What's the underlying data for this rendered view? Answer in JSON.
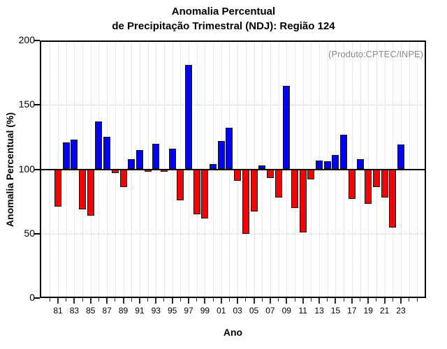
{
  "title": {
    "line1": "Anomalia Percentual",
    "line2": "de Precipitação Trimestral (NDJ): Região 124"
  },
  "annotation": "(Produto:CPTEC/INPE)",
  "chart_data": {
    "type": "bar",
    "title": "Anomalia Percentual de Precipitação Trimestral (NDJ): Região 124",
    "xlabel": "Ano",
    "ylabel": "Anomalia Percentual (%)",
    "ylim": [
      0,
      200
    ],
    "y_ticks": [
      0,
      50,
      100,
      150,
      200
    ],
    "baseline": 100,
    "grid": true,
    "legend": "none",
    "years": [
      1981,
      1982,
      1983,
      1984,
      1985,
      1986,
      1987,
      1988,
      1989,
      1990,
      1991,
      1992,
      1993,
      1994,
      1995,
      1996,
      1997,
      1998,
      1999,
      2000,
      2001,
      2002,
      2003,
      2004,
      2005,
      2006,
      2007,
      2008,
      2009,
      2010,
      2011,
      2012,
      2013,
      2014,
      2015,
      2016,
      2017,
      2018,
      2019,
      2020,
      2021,
      2022,
      2023
    ],
    "values": [
      71,
      121,
      123,
      69,
      64,
      137,
      125,
      97,
      86,
      108,
      115,
      98,
      120,
      98,
      116,
      76,
      181,
      65,
      62,
      104,
      122,
      132,
      91,
      50,
      67,
      103,
      93,
      78,
      165,
      70,
      51,
      92,
      107,
      106,
      111,
      127,
      77,
      108,
      73,
      86,
      78,
      55,
      119
    ],
    "x_tick_labels": [
      "81",
      "83",
      "85",
      "87",
      "89",
      "91",
      "93",
      "95",
      "97",
      "99",
      "01",
      "03",
      "05",
      "07",
      "09",
      "11",
      "13",
      "15",
      "17",
      "19",
      "21",
      "23"
    ],
    "x_minor_tick_years": [
      1980,
      2025
    ],
    "positive_color": "#0404ee",
    "negative_color": "#ee0606"
  }
}
